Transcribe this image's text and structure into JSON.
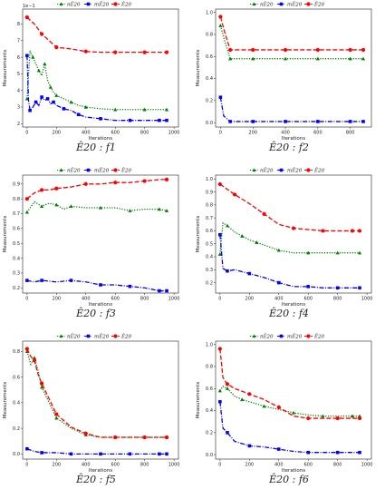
{
  "colors": {
    "series_n": "#008000",
    "series_m": "#0000ff",
    "series_e": "#ff0000"
  },
  "legend_labels": [
    "$n\\bar{\\mathcal{E}}_{20}$",
    "$m\\bar{\\mathcal{E}}_{20}$",
    "$\\bar{\\mathcal{E}}_{20}$"
  ],
  "legend_display": [
    "nÊ20",
    "mÊ20",
    "Ê20"
  ],
  "chart_data": [
    {
      "type": "line",
      "caption": "Ê20 : f1",
      "xlabel": "Iterations",
      "ylabel": "Measurements",
      "xlim": [
        -30,
        1030
      ],
      "ylim": [
        1.8,
        8.9
      ],
      "xticks": [
        0,
        200,
        400,
        600,
        800,
        1000
      ],
      "yticks": [
        2,
        3,
        4,
        5,
        6,
        7,
        8
      ],
      "ytick_labels": [
        "2",
        "3",
        "4",
        "5",
        "6",
        "7",
        "8"
      ],
      "y_offset_text": "1e−1",
      "series": [
        {
          "name": "nÊ20",
          "style": "dotted",
          "marker": "triangle",
          "x": [
            0,
            20,
            40,
            60,
            80,
            100,
            120,
            140,
            160,
            180,
            200,
            250,
            300,
            350,
            400,
            500,
            600,
            700,
            800,
            900,
            950
          ],
          "y": [
            3.5,
            6.4,
            6.0,
            5.6,
            5.2,
            4.9,
            5.6,
            4.6,
            4.2,
            3.9,
            3.7,
            3.5,
            3.3,
            3.1,
            3.0,
            2.9,
            2.85,
            2.85,
            2.85,
            2.85,
            2.85
          ]
        },
        {
          "name": "mÊ20",
          "style": "dashdot",
          "marker": "square",
          "x": [
            0,
            10,
            20,
            40,
            60,
            80,
            100,
            120,
            140,
            160,
            180,
            200,
            250,
            300,
            350,
            400,
            500,
            600,
            700,
            800,
            900,
            950
          ],
          "y": [
            6.1,
            3.4,
            2.8,
            3.0,
            3.3,
            3.1,
            3.6,
            3.4,
            3.5,
            3.2,
            3.3,
            3.1,
            2.9,
            2.8,
            2.55,
            2.4,
            2.3,
            2.2,
            2.2,
            2.2,
            2.2,
            2.2
          ]
        },
        {
          "name": "Ê20",
          "style": "dashed",
          "marker": "circle",
          "x": [
            0,
            50,
            100,
            150,
            200,
            300,
            400,
            500,
            600,
            700,
            800,
            900,
            950
          ],
          "y": [
            8.4,
            8.0,
            7.4,
            7.0,
            6.6,
            6.5,
            6.35,
            6.3,
            6.3,
            6.3,
            6.3,
            6.3,
            6.3
          ]
        }
      ]
    },
    {
      "type": "line",
      "caption": "Ê20 : f2",
      "xlabel": "Iterations",
      "ylabel": "Measurements",
      "xlim": [
        -30,
        930
      ],
      "ylim": [
        -0.04,
        1.03
      ],
      "xticks": [
        0,
        200,
        400,
        600,
        800
      ],
      "yticks": [
        0.0,
        0.2,
        0.4,
        0.6,
        0.8,
        1.0
      ],
      "ytick_labels": [
        "0.0",
        "0.2",
        "0.4",
        "0.6",
        "0.8",
        "1.0"
      ],
      "series": [
        {
          "name": "nÊ20",
          "style": "dotted",
          "marker": "triangle",
          "x": [
            0,
            30,
            60,
            100,
            200,
            300,
            400,
            500,
            600,
            700,
            800,
            880
          ],
          "y": [
            0.88,
            0.72,
            0.58,
            0.58,
            0.58,
            0.58,
            0.58,
            0.58,
            0.58,
            0.58,
            0.58,
            0.58
          ]
        },
        {
          "name": "mÊ20",
          "style": "dashdot",
          "marker": "square",
          "x": [
            0,
            20,
            60,
            100,
            200,
            300,
            400,
            500,
            600,
            700,
            800,
            880
          ],
          "y": [
            0.23,
            0.06,
            0.01,
            0.01,
            0.01,
            0.01,
            0.01,
            0.01,
            0.01,
            0.01,
            0.01,
            0.01
          ]
        },
        {
          "name": "Ê20",
          "style": "dashed",
          "marker": "circle",
          "x": [
            0,
            30,
            60,
            100,
            200,
            300,
            400,
            500,
            600,
            700,
            800,
            880
          ],
          "y": [
            0.96,
            0.8,
            0.66,
            0.66,
            0.66,
            0.66,
            0.66,
            0.66,
            0.66,
            0.66,
            0.66,
            0.66
          ]
        }
      ]
    },
    {
      "type": "line",
      "caption": "Ê20 : f3",
      "xlabel": "Iterations",
      "ylabel": "Measurements",
      "xlim": [
        -30,
        1030
      ],
      "ylim": [
        0.165,
        0.96
      ],
      "xticks": [
        0,
        200,
        400,
        600,
        800,
        1000
      ],
      "yticks": [
        0.2,
        0.3,
        0.4,
        0.5,
        0.6,
        0.7,
        0.8,
        0.9
      ],
      "ytick_labels": [
        "0.2",
        "0.3",
        "0.4",
        "0.5",
        "0.6",
        "0.7",
        "0.8",
        "0.9"
      ],
      "series": [
        {
          "name": "nÊ20",
          "style": "dotted",
          "marker": "triangle",
          "x": [
            0,
            50,
            100,
            150,
            200,
            250,
            300,
            400,
            500,
            600,
            700,
            800,
            900,
            950
          ],
          "y": [
            0.71,
            0.78,
            0.75,
            0.77,
            0.76,
            0.73,
            0.75,
            0.74,
            0.74,
            0.74,
            0.72,
            0.73,
            0.73,
            0.72
          ]
        },
        {
          "name": "mÊ20",
          "style": "dashdot",
          "marker": "square",
          "x": [
            0,
            50,
            100,
            200,
            300,
            400,
            500,
            600,
            700,
            800,
            900,
            950
          ],
          "y": [
            0.25,
            0.24,
            0.25,
            0.24,
            0.25,
            0.24,
            0.22,
            0.22,
            0.21,
            0.2,
            0.18,
            0.18
          ]
        },
        {
          "name": "Ê20",
          "style": "dashed",
          "marker": "circle",
          "x": [
            0,
            50,
            100,
            150,
            200,
            300,
            400,
            500,
            600,
            700,
            800,
            900,
            950
          ],
          "y": [
            0.8,
            0.84,
            0.86,
            0.86,
            0.87,
            0.88,
            0.9,
            0.9,
            0.91,
            0.91,
            0.92,
            0.93,
            0.93
          ]
        }
      ]
    },
    {
      "type": "line",
      "caption": "Ê20 : f4",
      "xlabel": "Iterations",
      "ylabel": "Measurements",
      "xlim": [
        -30,
        1030
      ],
      "ylim": [
        0.12,
        1.03
      ],
      "xticks": [
        0,
        200,
        400,
        600,
        800,
        1000
      ],
      "yticks": [
        0.2,
        0.3,
        0.4,
        0.5,
        0.6,
        0.7,
        0.8,
        0.9,
        1.0
      ],
      "ytick_labels": [
        "0.2",
        "0.3",
        "0.4",
        "0.5",
        "0.6",
        "0.7",
        "0.8",
        "0.9",
        "1.0"
      ],
      "series": [
        {
          "name": "nÊ20",
          "style": "dotted",
          "marker": "triangle",
          "x": [
            0,
            20,
            50,
            100,
            150,
            200,
            250,
            300,
            400,
            500,
            600,
            700,
            800,
            900,
            950
          ],
          "y": [
            0.42,
            0.66,
            0.64,
            0.59,
            0.56,
            0.53,
            0.51,
            0.49,
            0.45,
            0.43,
            0.43,
            0.43,
            0.43,
            0.43,
            0.43
          ]
        },
        {
          "name": "mÊ20",
          "style": "dashdot",
          "marker": "square",
          "x": [
            0,
            20,
            50,
            100,
            200,
            300,
            400,
            500,
            600,
            700,
            800,
            900,
            950
          ],
          "y": [
            0.57,
            0.31,
            0.29,
            0.3,
            0.27,
            0.24,
            0.2,
            0.17,
            0.17,
            0.16,
            0.16,
            0.16,
            0.16
          ]
        },
        {
          "name": "Ê20",
          "style": "dashed",
          "marker": "circle",
          "x": [
            0,
            50,
            100,
            200,
            300,
            400,
            500,
            600,
            700,
            800,
            900,
            950
          ],
          "y": [
            0.96,
            0.92,
            0.88,
            0.81,
            0.73,
            0.65,
            0.62,
            0.61,
            0.6,
            0.6,
            0.6,
            0.6
          ]
        }
      ]
    },
    {
      "type": "line",
      "caption": "Ê20 : f5",
      "xlabel": "Iterations",
      "ylabel": "Measurements",
      "xlim": [
        -30,
        1030
      ],
      "ylim": [
        -0.04,
        0.88
      ],
      "xticks": [
        0,
        200,
        400,
        600,
        800,
        1000
      ],
      "yticks": [
        0.0,
        0.2,
        0.4,
        0.6,
        0.8
      ],
      "ytick_labels": [
        "0.0",
        "0.2",
        "0.4",
        "0.6",
        "0.8"
      ],
      "series": [
        {
          "name": "nÊ20",
          "style": "dotted",
          "marker": "triangle",
          "x": [
            0,
            25,
            50,
            75,
            100,
            150,
            200,
            300,
            400,
            500,
            600,
            700,
            800,
            900,
            950
          ],
          "y": [
            0.8,
            0.7,
            0.75,
            0.65,
            0.52,
            0.4,
            0.28,
            0.2,
            0.15,
            0.13,
            0.13,
            0.13,
            0.13,
            0.13,
            0.13
          ]
        },
        {
          "name": "mÊ20",
          "style": "dashdot",
          "marker": "square",
          "x": [
            0,
            50,
            100,
            200,
            300,
            400,
            500,
            600,
            700,
            800,
            900,
            950
          ],
          "y": [
            0.04,
            0.02,
            0.01,
            0.01,
            0.0,
            0.0,
            0.0,
            0.0,
            0.0,
            0.0,
            0.0,
            0.0
          ]
        },
        {
          "name": "Ê20",
          "style": "dashed",
          "marker": "circle",
          "x": [
            0,
            25,
            50,
            75,
            100,
            150,
            200,
            300,
            400,
            500,
            600,
            700,
            800,
            900,
            950
          ],
          "y": [
            0.82,
            0.76,
            0.73,
            0.62,
            0.55,
            0.43,
            0.31,
            0.21,
            0.16,
            0.13,
            0.13,
            0.13,
            0.13,
            0.13,
            0.13
          ]
        }
      ]
    },
    {
      "type": "line",
      "caption": "Ê20 : f6",
      "xlabel": "Iterations",
      "ylabel": "Measurements",
      "xlim": [
        -30,
        1030
      ],
      "ylim": [
        -0.04,
        1.03
      ],
      "xticks": [
        0,
        200,
        400,
        600,
        800,
        1000
      ],
      "yticks": [
        0.0,
        0.2,
        0.4,
        0.6,
        0.8,
        1.0
      ],
      "ytick_labels": [
        "0.0",
        "0.2",
        "0.4",
        "0.6",
        "0.8",
        "1.0"
      ],
      "series": [
        {
          "name": "nÊ20",
          "style": "dotted",
          "marker": "triangle",
          "x": [
            0,
            20,
            50,
            100,
            150,
            200,
            300,
            400,
            500,
            600,
            700,
            800,
            900,
            950
          ],
          "y": [
            0.58,
            0.62,
            0.6,
            0.53,
            0.5,
            0.48,
            0.44,
            0.41,
            0.38,
            0.36,
            0.35,
            0.35,
            0.35,
            0.35
          ]
        },
        {
          "name": "mÊ20",
          "style": "dashdot",
          "marker": "square",
          "x": [
            0,
            20,
            50,
            100,
            200,
            300,
            400,
            500,
            600,
            700,
            800,
            900,
            950
          ],
          "y": [
            0.48,
            0.24,
            0.2,
            0.12,
            0.08,
            0.07,
            0.05,
            0.03,
            0.02,
            0.02,
            0.02,
            0.02,
            0.02
          ]
        },
        {
          "name": "Ê20",
          "style": "dashed",
          "marker": "circle",
          "x": [
            0,
            20,
            50,
            100,
            200,
            300,
            400,
            500,
            600,
            700,
            800,
            900,
            950
          ],
          "y": [
            0.96,
            0.7,
            0.64,
            0.6,
            0.55,
            0.5,
            0.43,
            0.35,
            0.33,
            0.33,
            0.33,
            0.33,
            0.33
          ]
        }
      ]
    }
  ]
}
